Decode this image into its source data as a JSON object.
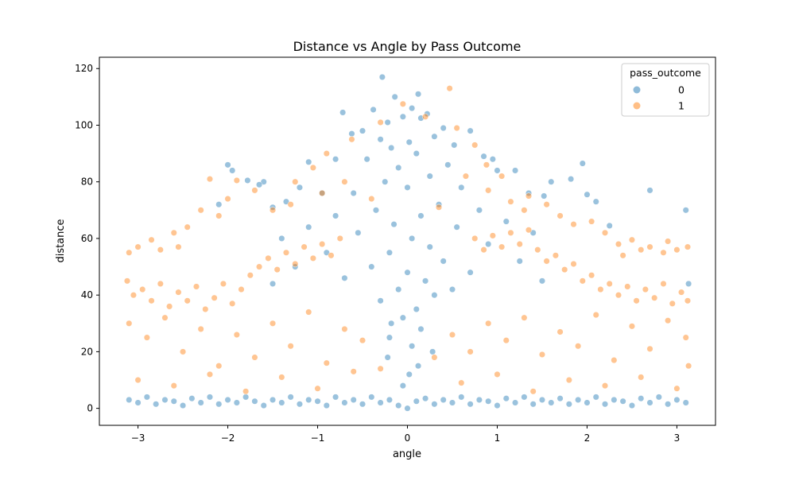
{
  "chart_data": {
    "type": "scatter",
    "title": "Distance vs Angle by Pass Outcome",
    "xlabel": "angle",
    "ylabel": "distance",
    "xlim": [
      -3.43,
      3.43
    ],
    "ylim": [
      -6,
      124
    ],
    "xticks": [
      -3,
      -2,
      -1,
      0,
      1,
      2,
      3
    ],
    "yticks": [
      0,
      20,
      40,
      60,
      80,
      100,
      120
    ],
    "grid": false,
    "legend": {
      "title": "pass_outcome",
      "placement": "top-right",
      "entries": [
        {
          "label": "0",
          "color": "#1f77b4"
        },
        {
          "label": "1",
          "color": "#ff7f0e"
        }
      ]
    },
    "series": [
      {
        "name": "0",
        "color": "#1f77b4",
        "alpha": 0.45,
        "points": [
          [
            -0.28,
            117
          ],
          [
            0.12,
            111
          ],
          [
            -0.14,
            110
          ],
          [
            0.05,
            106
          ],
          [
            -0.38,
            105.5
          ],
          [
            -0.72,
            104.5
          ],
          [
            0.22,
            104
          ],
          [
            -0.05,
            103
          ],
          [
            0.15,
            102.5
          ],
          [
            -0.22,
            101
          ],
          [
            0.4,
            99
          ],
          [
            -0.5,
            98
          ],
          [
            0.7,
            98
          ],
          [
            -0.62,
            97
          ],
          [
            0.3,
            96
          ],
          [
            -0.3,
            95
          ],
          [
            0.02,
            94
          ],
          [
            0.52,
            93
          ],
          [
            -0.18,
            92
          ],
          [
            0.85,
            89
          ],
          [
            0.95,
            88
          ],
          [
            -0.8,
            88
          ],
          [
            1.2,
            84
          ],
          [
            1.0,
            84
          ],
          [
            -1.1,
            87
          ],
          [
            -2.0,
            86
          ],
          [
            1.95,
            86.5
          ],
          [
            -1.95,
            84
          ],
          [
            -1.6,
            80
          ],
          [
            -1.65,
            79
          ],
          [
            -1.78,
            80.5
          ],
          [
            1.6,
            80
          ],
          [
            1.82,
            81
          ],
          [
            1.35,
            76
          ],
          [
            1.52,
            75
          ],
          [
            2.0,
            75.5
          ],
          [
            2.1,
            73
          ],
          [
            2.25,
            64.5
          ],
          [
            2.7,
            77
          ],
          [
            3.1,
            70
          ],
          [
            -1.2,
            78
          ],
          [
            -0.95,
            76
          ],
          [
            -1.35,
            73
          ],
          [
            -1.5,
            71
          ],
          [
            -2.1,
            72
          ],
          [
            -0.45,
            88
          ],
          [
            0.45,
            86
          ],
          [
            0.1,
            90
          ],
          [
            -0.1,
            85
          ],
          [
            0.25,
            82
          ],
          [
            -0.25,
            80
          ],
          [
            0.6,
            78
          ],
          [
            -0.6,
            76
          ],
          [
            0.0,
            78
          ],
          [
            0.35,
            72
          ],
          [
            -0.35,
            70
          ],
          [
            0.15,
            68
          ],
          [
            -0.15,
            65
          ],
          [
            0.55,
            64
          ],
          [
            -0.55,
            62
          ],
          [
            0.05,
            60
          ],
          [
            0.25,
            57
          ],
          [
            -0.2,
            55
          ],
          [
            0.4,
            52
          ],
          [
            -0.4,
            50
          ],
          [
            0.0,
            48
          ],
          [
            0.2,
            45
          ],
          [
            -0.1,
            42
          ],
          [
            0.3,
            40
          ],
          [
            -0.3,
            38
          ],
          [
            0.1,
            35
          ],
          [
            -0.05,
            32
          ],
          [
            0.15,
            28
          ],
          [
            -0.2,
            25
          ],
          [
            0.05,
            22
          ],
          [
            0.8,
            70
          ],
          [
            -0.8,
            68
          ],
          [
            1.1,
            66
          ],
          [
            -1.1,
            64
          ],
          [
            1.4,
            62
          ],
          [
            -1.4,
            60
          ],
          [
            0.9,
            58
          ],
          [
            -0.9,
            55
          ],
          [
            1.25,
            52
          ],
          [
            -1.25,
            50
          ],
          [
            0.7,
            48
          ],
          [
            -0.7,
            46
          ],
          [
            1.5,
            45
          ],
          [
            -1.5,
            44
          ],
          [
            0.5,
            42
          ],
          [
            -3.1,
            3
          ],
          [
            -3.0,
            2
          ],
          [
            -2.9,
            4
          ],
          [
            -2.8,
            1.5
          ],
          [
            -2.7,
            3
          ],
          [
            -2.6,
            2.5
          ],
          [
            -2.5,
            1
          ],
          [
            -2.4,
            3.5
          ],
          [
            -2.3,
            2
          ],
          [
            -2.2,
            4
          ],
          [
            -2.1,
            1.5
          ],
          [
            -2.0,
            3
          ],
          [
            -1.9,
            2
          ],
          [
            -1.8,
            4
          ],
          [
            -1.7,
            2.5
          ],
          [
            -1.6,
            1
          ],
          [
            -1.5,
            3
          ],
          [
            -1.4,
            2
          ],
          [
            -1.3,
            4
          ],
          [
            -1.2,
            1.5
          ],
          [
            -1.1,
            3
          ],
          [
            -1.0,
            2.5
          ],
          [
            -0.9,
            1
          ],
          [
            -0.8,
            4
          ],
          [
            -0.7,
            2
          ],
          [
            -0.6,
            3
          ],
          [
            -0.5,
            1.5
          ],
          [
            -0.4,
            4
          ],
          [
            -0.3,
            2
          ],
          [
            -0.2,
            3
          ],
          [
            -0.1,
            1
          ],
          [
            0.0,
            0
          ],
          [
            0.1,
            2.5
          ],
          [
            0.2,
            3.5
          ],
          [
            0.3,
            1.5
          ],
          [
            0.4,
            3
          ],
          [
            0.5,
            2
          ],
          [
            0.6,
            4
          ],
          [
            0.7,
            1.5
          ],
          [
            0.8,
            3
          ],
          [
            0.9,
            2.5
          ],
          [
            1.0,
            1
          ],
          [
            1.1,
            3.5
          ],
          [
            1.2,
            2
          ],
          [
            1.3,
            4
          ],
          [
            1.4,
            1.5
          ],
          [
            1.5,
            3
          ],
          [
            1.6,
            2
          ],
          [
            1.7,
            3.5
          ],
          [
            1.8,
            1.5
          ],
          [
            1.9,
            3
          ],
          [
            2.0,
            2
          ],
          [
            2.1,
            4
          ],
          [
            2.2,
            1.5
          ],
          [
            2.3,
            3
          ],
          [
            2.4,
            2.5
          ],
          [
            2.5,
            1
          ],
          [
            2.6,
            3.5
          ],
          [
            2.7,
            2
          ],
          [
            2.8,
            4
          ],
          [
            2.9,
            1.5
          ],
          [
            3.0,
            3
          ],
          [
            3.1,
            2
          ],
          [
            3.13,
            44
          ],
          [
            -0.18,
            30
          ],
          [
            0.02,
            12
          ],
          [
            -0.05,
            8
          ],
          [
            0.12,
            15
          ],
          [
            -0.22,
            18
          ],
          [
            0.28,
            20
          ]
        ]
      },
      {
        "name": "1",
        "color": "#ff7f0e",
        "alpha": 0.45,
        "points": [
          [
            0.47,
            113
          ],
          [
            -0.05,
            107.5
          ],
          [
            0.2,
            103
          ],
          [
            -0.3,
            101
          ],
          [
            0.55,
            99
          ],
          [
            -0.62,
            95
          ],
          [
            0.75,
            93
          ],
          [
            -0.9,
            90
          ],
          [
            0.88,
            86
          ],
          [
            1.05,
            82
          ],
          [
            -1.05,
            85
          ],
          [
            -1.25,
            80
          ],
          [
            -2.2,
            81
          ],
          [
            -1.9,
            80.5
          ],
          [
            -1.7,
            77
          ],
          [
            -2.0,
            74
          ],
          [
            -2.1,
            68
          ],
          [
            -2.3,
            70
          ],
          [
            -2.45,
            64
          ],
          [
            -2.6,
            62
          ],
          [
            -2.85,
            59.5
          ],
          [
            -3.0,
            57
          ],
          [
            -3.1,
            55
          ],
          [
            -2.75,
            56
          ],
          [
            -2.55,
            57
          ],
          [
            1.35,
            75
          ],
          [
            1.55,
            72
          ],
          [
            1.7,
            68
          ],
          [
            1.85,
            65
          ],
          [
            2.05,
            66
          ],
          [
            2.2,
            62
          ],
          [
            2.35,
            58
          ],
          [
            2.5,
            59.5
          ],
          [
            2.7,
            57
          ],
          [
            2.9,
            59
          ],
          [
            3.0,
            56
          ],
          [
            3.12,
            57
          ],
          [
            2.85,
            55
          ],
          [
            2.6,
            56
          ],
          [
            2.4,
            54
          ],
          [
            -1.3,
            72
          ],
          [
            -1.5,
            70
          ],
          [
            -0.95,
            76
          ],
          [
            -0.7,
            80
          ],
          [
            0.65,
            82
          ],
          [
            0.9,
            77
          ],
          [
            1.15,
            73
          ],
          [
            1.3,
            70
          ],
          [
            -0.4,
            74
          ],
          [
            0.35,
            71
          ],
          [
            -3.12,
            45
          ],
          [
            -3.05,
            40
          ],
          [
            -2.95,
            42
          ],
          [
            -2.85,
            38
          ],
          [
            -2.75,
            44
          ],
          [
            -2.65,
            36
          ],
          [
            -2.55,
            41
          ],
          [
            -2.45,
            38
          ],
          [
            -2.35,
            43
          ],
          [
            -2.25,
            35
          ],
          [
            -2.15,
            39
          ],
          [
            -2.05,
            44
          ],
          [
            -1.95,
            37
          ],
          [
            -1.85,
            42
          ],
          [
            -1.75,
            47
          ],
          [
            -1.65,
            50
          ],
          [
            -1.55,
            53
          ],
          [
            -1.45,
            49
          ],
          [
            -1.35,
            55
          ],
          [
            -1.25,
            51
          ],
          [
            -1.15,
            57
          ],
          [
            -1.05,
            53
          ],
          [
            -0.95,
            58
          ],
          [
            -0.85,
            54
          ],
          [
            -0.75,
            60
          ],
          [
            0.75,
            60
          ],
          [
            0.85,
            56
          ],
          [
            0.95,
            61
          ],
          [
            1.05,
            57
          ],
          [
            1.15,
            62
          ],
          [
            1.25,
            58
          ],
          [
            1.35,
            63
          ],
          [
            1.45,
            56
          ],
          [
            1.55,
            52
          ],
          [
            1.65,
            54
          ],
          [
            1.75,
            49
          ],
          [
            1.85,
            51
          ],
          [
            1.95,
            45
          ],
          [
            2.05,
            47
          ],
          [
            2.15,
            42
          ],
          [
            2.25,
            44
          ],
          [
            2.35,
            40
          ],
          [
            2.45,
            43
          ],
          [
            2.55,
            38
          ],
          [
            2.65,
            42
          ],
          [
            2.75,
            39
          ],
          [
            2.85,
            44
          ],
          [
            2.95,
            37
          ],
          [
            3.05,
            41
          ],
          [
            3.12,
            38
          ],
          [
            -3.1,
            30
          ],
          [
            -2.9,
            25
          ],
          [
            -2.7,
            32
          ],
          [
            -2.5,
            20
          ],
          [
            -2.3,
            28
          ],
          [
            -2.1,
            15
          ],
          [
            -1.9,
            26
          ],
          [
            -1.7,
            18
          ],
          [
            -1.5,
            30
          ],
          [
            -1.3,
            22
          ],
          [
            -1.1,
            34
          ],
          [
            -0.9,
            16
          ],
          [
            -0.7,
            28
          ],
          [
            -0.5,
            24
          ],
          [
            -0.3,
            14
          ],
          [
            0.3,
            18
          ],
          [
            0.5,
            26
          ],
          [
            0.7,
            20
          ],
          [
            0.9,
            30
          ],
          [
            1.1,
            24
          ],
          [
            1.3,
            32
          ],
          [
            1.5,
            19
          ],
          [
            1.7,
            27
          ],
          [
            1.9,
            22
          ],
          [
            2.1,
            33
          ],
          [
            2.3,
            17
          ],
          [
            2.5,
            29
          ],
          [
            2.7,
            21
          ],
          [
            2.9,
            31
          ],
          [
            3.1,
            25
          ],
          [
            -3.0,
            10
          ],
          [
            -2.6,
            8
          ],
          [
            -2.2,
            12
          ],
          [
            -1.8,
            6
          ],
          [
            -1.4,
            11
          ],
          [
            -1.0,
            7
          ],
          [
            -0.6,
            13
          ],
          [
            0.6,
            9
          ],
          [
            1.0,
            12
          ],
          [
            1.4,
            6
          ],
          [
            1.8,
            10
          ],
          [
            2.2,
            8
          ],
          [
            2.6,
            11
          ],
          [
            3.0,
            7
          ],
          [
            3.13,
            15
          ]
        ]
      }
    ]
  }
}
